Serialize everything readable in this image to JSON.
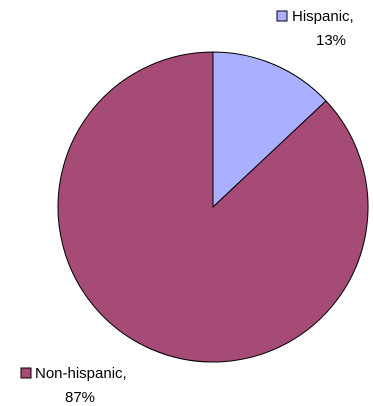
{
  "chart_data": {
    "type": "pie",
    "slices": [
      {
        "category": "Hispanic",
        "percent_label": "13%",
        "value": 13,
        "color": "#aab0ff"
      },
      {
        "category": "Non-hispanic",
        "percent_label": "87%",
        "value": 87,
        "color": "#a64a76"
      }
    ],
    "legend": "none",
    "data_labels": "category and percent beside each slice",
    "start_angle": "12 o'clock",
    "direction": "clockwise",
    "outline_color": "#000000"
  }
}
